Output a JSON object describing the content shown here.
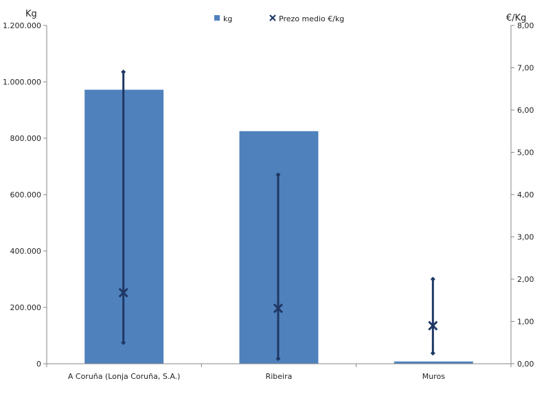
{
  "chart_data": {
    "type": "bar",
    "categories": [
      "A Coruña (Lonja Coruña, S.A.)",
      "Ribeira",
      "Muros"
    ],
    "series": [
      {
        "name": "kg",
        "axis": "left",
        "values": [
          972000,
          825000,
          8000
        ]
      },
      {
        "name": "Prezo medio €/kg",
        "axis": "right",
        "marker": "x",
        "values": [
          1.68,
          1.31,
          0.9
        ],
        "min": [
          0.5,
          0.12,
          0.25
        ],
        "max": [
          6.9,
          4.47,
          2.0
        ]
      }
    ],
    "ylabel_left": "Kg",
    "ylabel_right": "€/Kg",
    "ylim_left": [
      0,
      1200000
    ],
    "ylim_right": [
      0,
      8
    ],
    "yticks_left": [
      "0",
      "200.000",
      "400.000",
      "600.000",
      "800.000",
      "1.000.000",
      "1.200.000"
    ],
    "yticks_right": [
      "0,00",
      "1,00",
      "2,00",
      "3,00",
      "4,00",
      "5,00",
      "6,00",
      "7,00",
      "8,00"
    ],
    "legend_position": "top-center",
    "grid": false,
    "colors": {
      "bar": "#4F81BD",
      "line": "#1F3864"
    }
  }
}
